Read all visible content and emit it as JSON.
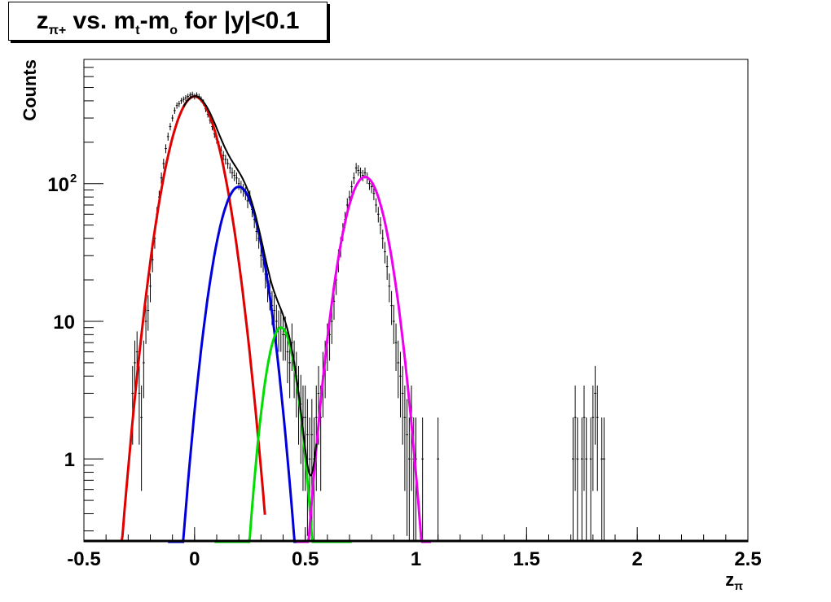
{
  "title": {
    "z": "z",
    "sub_pi_plus": "π+",
    "rest_a": " vs. m",
    "sub_t": "t",
    "rest_b": "-m",
    "sub_o": "o",
    "rest_c": " for |y|<0.1"
  },
  "colors": {
    "frame": "#000000",
    "data": "#000000",
    "total_fit": "#000000",
    "pion_fit": "#e00000",
    "second_fit": "#0000dd",
    "third_fit": "#00dd00",
    "proton_fit": "#ee00ee"
  },
  "chart_data": {
    "type": "line",
    "xlabel": "z",
    "xlabel_sub": "π",
    "ylabel": "Counts",
    "xlim": [
      -0.5,
      2.5
    ],
    "ylim": [
      0.25,
      800
    ],
    "ylog": true,
    "grid": false,
    "legend": "none",
    "x_tick_labels": [
      "-0.5",
      "0",
      "0.5",
      "1",
      "1.5",
      "2",
      "2.5"
    ],
    "y_tick_labels": [
      {
        "value": 1,
        "base": "1",
        "exp": ""
      },
      {
        "value": 10,
        "base": "10",
        "exp": ""
      },
      {
        "value": 100,
        "base": "10",
        "exp": "2"
      }
    ],
    "histogram": {
      "bin_width": 0.01,
      "points": [
        [
          -0.28,
          3
        ],
        [
          -0.27,
          5
        ],
        [
          -0.26,
          6
        ],
        [
          -0.25,
          3
        ],
        [
          -0.24,
          2
        ],
        [
          -0.23,
          5
        ],
        [
          -0.22,
          10
        ],
        [
          -0.21,
          12
        ],
        [
          -0.2,
          18
        ],
        [
          -0.19,
          28
        ],
        [
          -0.18,
          40
        ],
        [
          -0.17,
          60
        ],
        [
          -0.16,
          80
        ],
        [
          -0.15,
          110
        ],
        [
          -0.14,
          140
        ],
        [
          -0.13,
          180
        ],
        [
          -0.12,
          220
        ],
        [
          -0.11,
          260
        ],
        [
          -0.1,
          300
        ],
        [
          -0.09,
          340
        ],
        [
          -0.08,
          370
        ],
        [
          -0.07,
          380
        ],
        [
          -0.06,
          400
        ],
        [
          -0.05,
          410
        ],
        [
          -0.04,
          420
        ],
        [
          -0.03,
          430
        ],
        [
          -0.02,
          440
        ],
        [
          -0.01,
          445
        ],
        [
          0.0,
          430
        ],
        [
          0.01,
          440
        ],
        [
          0.02,
          430
        ],
        [
          0.03,
          410
        ],
        [
          0.04,
          390
        ],
        [
          0.05,
          350
        ],
        [
          0.06,
          320
        ],
        [
          0.07,
          290
        ],
        [
          0.08,
          260
        ],
        [
          0.09,
          230
        ],
        [
          0.1,
          210
        ],
        [
          0.11,
          190
        ],
        [
          0.12,
          175
        ],
        [
          0.13,
          160
        ],
        [
          0.14,
          150
        ],
        [
          0.15,
          140
        ],
        [
          0.16,
          130
        ],
        [
          0.17,
          120
        ],
        [
          0.18,
          115
        ],
        [
          0.19,
          110
        ],
        [
          0.2,
          100
        ],
        [
          0.21,
          95
        ],
        [
          0.22,
          90
        ],
        [
          0.23,
          85
        ],
        [
          0.24,
          75
        ],
        [
          0.25,
          80
        ],
        [
          0.26,
          65
        ],
        [
          0.27,
          55
        ],
        [
          0.28,
          45
        ],
        [
          0.29,
          40
        ],
        [
          0.3,
          30
        ],
        [
          0.31,
          28
        ],
        [
          0.32,
          22
        ],
        [
          0.33,
          18
        ],
        [
          0.34,
          16
        ],
        [
          0.35,
          13
        ],
        [
          0.36,
          12
        ],
        [
          0.37,
          10
        ],
        [
          0.38,
          9
        ],
        [
          0.39,
          9
        ],
        [
          0.4,
          8
        ],
        [
          0.41,
          8
        ],
        [
          0.42,
          6
        ],
        [
          0.43,
          5
        ],
        [
          0.44,
          7
        ],
        [
          0.45,
          5
        ],
        [
          0.46,
          4
        ],
        [
          0.47,
          3
        ],
        [
          0.48,
          2.5
        ],
        [
          0.49,
          2
        ],
        [
          0.5,
          2
        ],
        [
          0.51,
          1.5
        ],
        [
          0.52,
          1
        ],
        [
          0.53,
          1.5
        ],
        [
          0.54,
          1
        ],
        [
          0.55,
          2
        ],
        [
          0.56,
          3
        ],
        [
          0.57,
          2
        ],
        [
          0.58,
          4
        ],
        [
          0.59,
          5
        ],
        [
          0.6,
          7
        ],
        [
          0.61,
          8
        ],
        [
          0.62,
          10
        ],
        [
          0.63,
          14
        ],
        [
          0.64,
          20
        ],
        [
          0.65,
          28
        ],
        [
          0.66,
          35
        ],
        [
          0.67,
          45
        ],
        [
          0.68,
          55
        ],
        [
          0.69,
          70
        ],
        [
          0.7,
          80
        ],
        [
          0.71,
          95
        ],
        [
          0.72,
          110
        ],
        [
          0.73,
          130
        ],
        [
          0.74,
          125
        ],
        [
          0.75,
          120
        ],
        [
          0.76,
          115
        ],
        [
          0.77,
          120
        ],
        [
          0.78,
          110
        ],
        [
          0.79,
          100
        ],
        [
          0.8,
          95
        ],
        [
          0.81,
          85
        ],
        [
          0.82,
          70
        ],
        [
          0.83,
          60
        ],
        [
          0.84,
          50
        ],
        [
          0.85,
          40
        ],
        [
          0.86,
          32
        ],
        [
          0.87,
          25
        ],
        [
          0.88,
          18
        ],
        [
          0.89,
          13
        ],
        [
          0.9,
          10
        ],
        [
          0.91,
          7
        ],
        [
          0.92,
          5
        ],
        [
          0.93,
          4
        ],
        [
          0.94,
          3
        ],
        [
          0.95,
          2
        ],
        [
          0.96,
          1.5
        ],
        [
          0.97,
          1
        ],
        [
          0.98,
          2
        ],
        [
          0.99,
          1
        ],
        [
          1.0,
          1
        ],
        [
          1.03,
          1
        ],
        [
          1.1,
          1
        ],
        [
          1.71,
          1
        ],
        [
          1.72,
          2
        ],
        [
          1.73,
          1
        ],
        [
          1.75,
          1
        ],
        [
          1.76,
          2
        ],
        [
          1.77,
          1
        ],
        [
          1.79,
          1
        ],
        [
          1.8,
          2
        ],
        [
          1.81,
          3
        ],
        [
          1.82,
          2
        ],
        [
          1.84,
          1
        ],
        [
          1.85,
          1
        ]
      ]
    },
    "fits": [
      {
        "color_key": "pion_fit",
        "mean": 0.0,
        "sigma": 0.085,
        "amplitude": 430,
        "range": [
          -0.33,
          0.32
        ]
      },
      {
        "color_key": "second_fit",
        "mean": 0.2,
        "sigma": 0.073,
        "amplitude": 95,
        "range": [
          -0.12,
          0.47
        ]
      },
      {
        "color_key": "third_fit",
        "mean": 0.39,
        "sigma": 0.053,
        "amplitude": 9,
        "range": [
          0.09,
          0.71
        ]
      },
      {
        "color_key": "proton_fit",
        "mean": 0.77,
        "sigma": 0.073,
        "amplitude": 112,
        "range": [
          0.46,
          1.07
        ]
      }
    ],
    "total_fit_range": [
      -0.05,
      0.55
    ]
  }
}
